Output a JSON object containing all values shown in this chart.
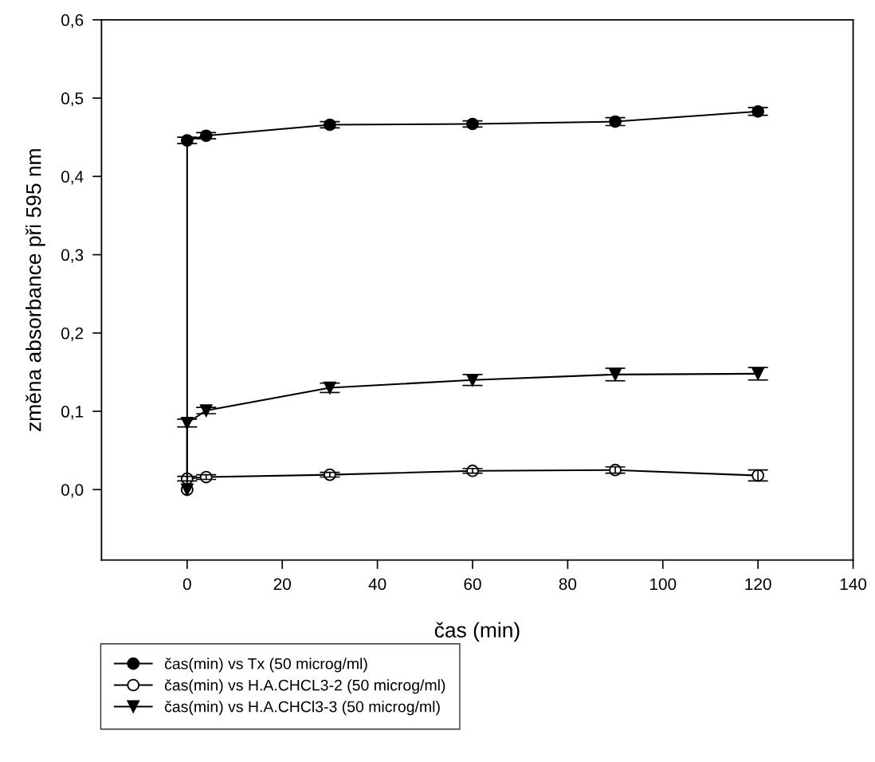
{
  "chart_data": {
    "type": "line",
    "xlabel": "čas (min)",
    "ylabel": "změna absorbance při 595 nm",
    "x": [
      0,
      0,
      4,
      30,
      60,
      90,
      120
    ],
    "series": [
      {
        "name": "čas(min) vs Tx (50 microg/ml)",
        "color": "#000000",
        "marker": "circle",
        "values": [
          0.0,
          0.446,
          0.452,
          0.466,
          0.467,
          0.47,
          0.483
        ],
        "errors": [
          null,
          0.004,
          0.004,
          0.004,
          0.004,
          0.005,
          0.005
        ]
      },
      {
        "name": "čas(min) vs H.A.CHCL3-2 (50 microg/ml)",
        "color": "#000000",
        "marker": "circle_open",
        "values": [
          0.0,
          0.014,
          0.016,
          0.019,
          0.024,
          0.025,
          0.018
        ],
        "errors": [
          null,
          0.003,
          0.003,
          0.003,
          0.003,
          0.004,
          0.007
        ]
      },
      {
        "name": "čas(min) vs H.A.CHCl3-3 (50 microg/ml)",
        "color": "#000000",
        "marker": "triangle",
        "values": [
          0.0,
          0.085,
          0.101,
          0.13,
          0.14,
          0.147,
          0.148
        ],
        "errors": [
          null,
          0.005,
          0.004,
          0.006,
          0.007,
          0.008,
          0.008
        ]
      }
    ],
    "xlim": [
      -18,
      140
    ],
    "xticks": [
      0,
      20,
      40,
      60,
      80,
      100,
      120,
      140
    ],
    "ylim": [
      -0.09,
      0.6
    ],
    "yticks": [
      {
        "value": 0.0,
        "label": "0,0"
      },
      {
        "value": 0.1,
        "label": "0,1"
      },
      {
        "value": 0.2,
        "label": "0,2"
      },
      {
        "value": 0.3,
        "label": "0,3"
      },
      {
        "value": 0.4,
        "label": "0,4"
      },
      {
        "value": 0.5,
        "label": "0,5"
      },
      {
        "value": 0.6,
        "label": "0,6"
      }
    ],
    "grid": false,
    "legend": "bottom left",
    "line_style": "solid"
  }
}
